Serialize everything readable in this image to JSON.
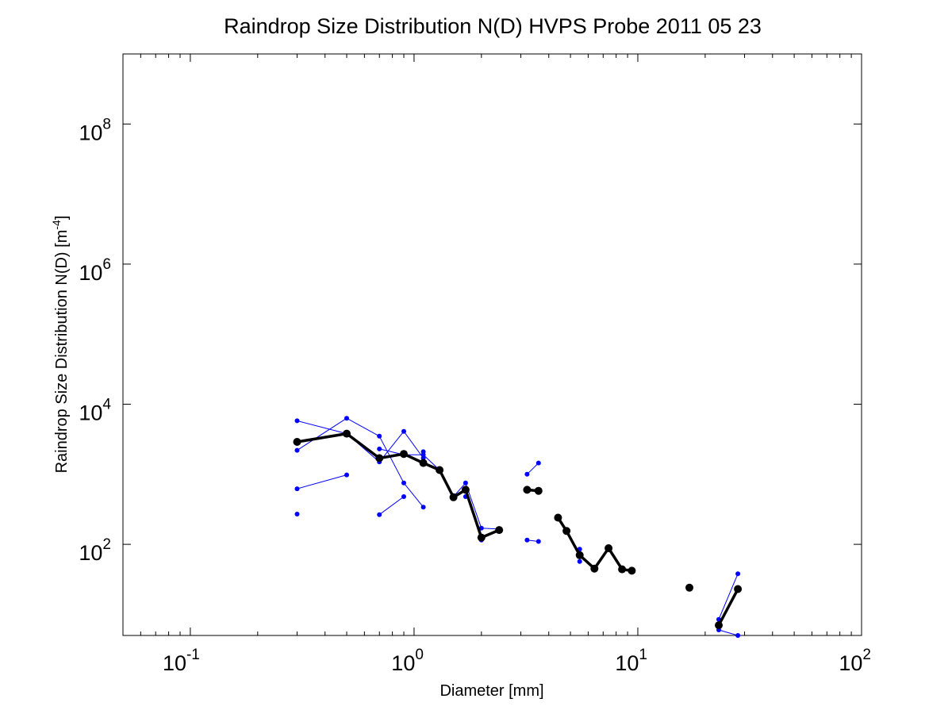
{
  "chart_data": {
    "type": "line",
    "title": "Raindrop Size Distribution N(D) HVPS Probe 2011 05 23",
    "xlabel": "Diameter [mm]",
    "ylabel_main": "Raindrop Size Distribution N(D) [m",
    "ylabel_sup": "-4",
    "ylabel_close": "]",
    "x_scale": "log",
    "y_scale": "log",
    "xlim": [
      0.05,
      100
    ],
    "ylim": [
      5,
      1000000000
    ],
    "x_ticks": [
      {
        "value": 0.1,
        "base": "10",
        "exp": "-1"
      },
      {
        "value": 1,
        "base": "10",
        "exp": "0"
      },
      {
        "value": 10,
        "base": "10",
        "exp": "1"
      },
      {
        "value": 100,
        "base": "10",
        "exp": "2"
      }
    ],
    "y_ticks": [
      {
        "value": 100,
        "base": "10",
        "exp": "2"
      },
      {
        "value": 10000,
        "base": "10",
        "exp": "4"
      },
      {
        "value": 1000000,
        "base": "10",
        "exp": "6"
      },
      {
        "value": 100000000,
        "base": "10",
        "exp": "8"
      }
    ],
    "grid": false,
    "colors": {
      "individual": "#0000ff",
      "mean": "#000000",
      "axes": "#000000"
    },
    "series": [
      {
        "style": "individual",
        "segments": [
          [
            [
              0.3,
              5800
            ],
            [
              0.5,
              3800
            ],
            [
              0.7,
              1500
            ],
            [
              0.9,
              4100
            ],
            [
              1.1,
              1700
            ]
          ]
        ]
      },
      {
        "style": "individual",
        "segments": [
          [
            [
              0.3,
              2200
            ],
            [
              0.5,
              6300
            ],
            [
              0.7,
              3500
            ],
            [
              0.9,
              750
            ],
            [
              1.1,
              340
            ]
          ]
        ]
      },
      {
        "style": "individual",
        "segments": [
          [
            [
              0.3,
              620
            ],
            [
              0.5,
              980
            ]
          ],
          [
            [
              0.7,
              2300
            ],
            [
              0.9,
              1900
            ],
            [
              1.1,
              1900
            ],
            [
              1.3,
              1150
            ],
            [
              1.5,
              480
            ],
            [
              1.7,
              750
            ],
            [
              2.0,
              170
            ],
            [
              2.4,
              165
            ]
          ]
        ]
      },
      {
        "style": "individual",
        "segments": [
          [
            [
              0.3,
              270
            ]
          ],
          [
            [
              0.7,
              265
            ],
            [
              0.9,
              480
            ]
          ],
          [
            [
              1.1,
              2100
            ]
          ],
          [
            [
              1.7,
              480
            ]
          ],
          [
            [
              2.0,
              115
            ]
          ],
          [
            [
              3.2,
              1000
            ],
            [
              3.6,
              1450
            ]
          ],
          [
            [
              3.2,
              115
            ],
            [
              3.6,
              110
            ]
          ],
          [
            [
              5.5,
              85
            ],
            [
              5.5,
              57
            ]
          ],
          [
            [
              23,
              8.5
            ],
            [
              28,
              38
            ]
          ],
          [
            [
              23,
              6
            ],
            [
              28,
              5
            ]
          ]
        ]
      },
      {
        "style": "mean",
        "segments": [
          [
            [
              0.3,
              2900
            ],
            [
              0.5,
              3800
            ],
            [
              0.7,
              1700
            ],
            [
              0.9,
              1950
            ],
            [
              1.1,
              1450
            ],
            [
              1.3,
              1150
            ],
            [
              1.5,
              470
            ],
            [
              1.7,
              600
            ],
            [
              2.0,
              125
            ],
            [
              2.4,
              160
            ]
          ],
          [
            [
              3.2,
              600
            ],
            [
              3.6,
              580
            ]
          ],
          [
            [
              4.4,
              240
            ],
            [
              4.8,
              155
            ],
            [
              5.5,
              70
            ],
            [
              6.4,
              45
            ],
            [
              7.4,
              88
            ],
            [
              8.5,
              44
            ],
            [
              9.4,
              42
            ]
          ],
          [
            [
              17,
              24
            ]
          ],
          [
            [
              23,
              7
            ],
            [
              28,
              23
            ]
          ]
        ]
      }
    ]
  }
}
